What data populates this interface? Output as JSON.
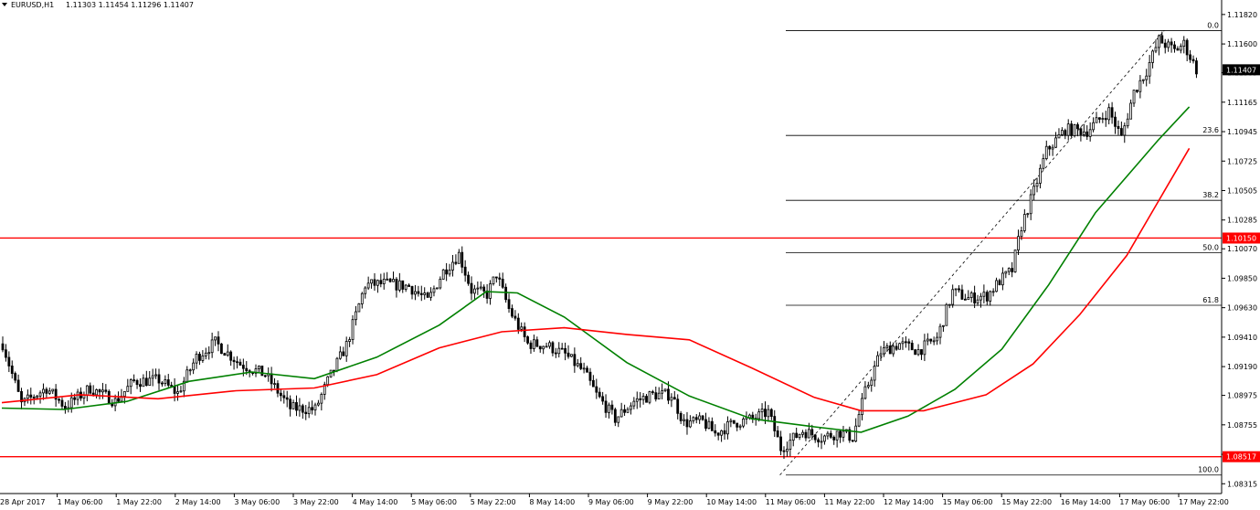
{
  "header": {
    "symbol": "EURUSD,H1",
    "ohlc": "1.11303 1.11454 1.11296 1.11407"
  },
  "chart_data": {
    "type": "candlestick",
    "grid": false,
    "ylim": [
      1.0831,
      1.1186
    ],
    "y_ticks": [
      1.1182,
      1.116,
      1.11385,
      1.11165,
      1.10945,
      1.10725,
      1.10505,
      1.10285,
      1.1007,
      1.0985,
      1.0963,
      1.0941,
      1.0919,
      1.08975,
      1.08755,
      1.08535,
      1.08315
    ],
    "x_ticks": [
      "28 Apr 2017",
      "1 May 06:00",
      "1 May 22:00",
      "2 May 14:00",
      "3 May 06:00",
      "3 May 22:00",
      "4 May 14:00",
      "5 May 06:00",
      "5 May 22:00",
      "8 May 14:00",
      "9 May 06:00",
      "9 May 22:00",
      "10 May 14:00",
      "11 May 06:00",
      "11 May 22:00",
      "12 May 14:00",
      "15 May 06:00",
      "15 May 22:00",
      "16 May 14:00",
      "17 May 06:00",
      "17 May 22:00"
    ],
    "price_labels": [
      {
        "value": "1.11407",
        "price": 1.11407,
        "style": "current"
      },
      {
        "value": "1.10150",
        "price": 1.1015,
        "style": "red"
      },
      {
        "value": "1.08517",
        "price": 1.08517,
        "style": "red"
      }
    ],
    "horizontal_lines": [
      {
        "price": 1.1015,
        "color": "#ff0000"
      },
      {
        "price": 1.08517,
        "color": "#ff0000"
      }
    ],
    "fibonacci": {
      "high": 1.117,
      "low": 1.0838,
      "levels": [
        {
          "label": "0.0",
          "ratio": 0.0
        },
        {
          "label": "23.6",
          "ratio": 0.236
        },
        {
          "label": "38.2",
          "ratio": 0.382
        },
        {
          "label": "50.0",
          "ratio": 0.5
        },
        {
          "label": "61.8",
          "ratio": 0.618
        },
        {
          "label": "100.0",
          "ratio": 1.0
        }
      ],
      "start_bar": 249,
      "end_bar": 372,
      "color": "#000000"
    },
    "moving_averages": [
      {
        "color": "#008000",
        "points": [
          [
            0,
            1.0888
          ],
          [
            20,
            1.0887
          ],
          [
            40,
            1.0893
          ],
          [
            60,
            1.0908
          ],
          [
            80,
            1.0915
          ],
          [
            100,
            1.091
          ],
          [
            120,
            1.0926
          ],
          [
            140,
            1.095
          ],
          [
            155,
            1.0975
          ],
          [
            165,
            1.0974
          ],
          [
            180,
            1.0956
          ],
          [
            200,
            1.0922
          ],
          [
            220,
            1.0897
          ],
          [
            240,
            1.088
          ],
          [
            260,
            1.0874
          ],
          [
            275,
            1.087
          ],
          [
            290,
            1.0882
          ],
          [
            305,
            1.0902
          ],
          [
            320,
            1.0932
          ],
          [
            335,
            1.098
          ],
          [
            350,
            1.1034
          ],
          [
            370,
            1.1088
          ],
          [
            380,
            1.1113
          ]
        ]
      },
      {
        "color": "#ff0000",
        "points": [
          [
            0,
            1.0892
          ],
          [
            25,
            1.0898
          ],
          [
            50,
            1.0895
          ],
          [
            75,
            1.0901
          ],
          [
            100,
            1.0903
          ],
          [
            120,
            1.0913
          ],
          [
            140,
            1.0933
          ],
          [
            160,
            1.0945
          ],
          [
            180,
            1.0948
          ],
          [
            200,
            1.0943
          ],
          [
            220,
            1.0939
          ],
          [
            240,
            1.0918
          ],
          [
            260,
            1.0896
          ],
          [
            275,
            1.0886
          ],
          [
            295,
            1.0886
          ],
          [
            315,
            1.0898
          ],
          [
            330,
            1.0921
          ],
          [
            345,
            1.0958
          ],
          [
            360,
            1.1002
          ],
          [
            372,
            1.105
          ],
          [
            380,
            1.1082
          ]
        ]
      }
    ],
    "anchors": [
      [
        0,
        1.0936
      ],
      [
        6,
        1.0891
      ],
      [
        14,
        1.0903
      ],
      [
        20,
        1.0889
      ],
      [
        28,
        1.0903
      ],
      [
        36,
        1.0893
      ],
      [
        42,
        1.0908
      ],
      [
        50,
        1.0909
      ],
      [
        56,
        1.0899
      ],
      [
        62,
        1.0926
      ],
      [
        68,
        1.0937
      ],
      [
        76,
        1.0921
      ],
      [
        84,
        1.0913
      ],
      [
        92,
        1.0888
      ],
      [
        100,
        1.0887
      ],
      [
        104,
        1.0908
      ],
      [
        110,
        1.0935
      ],
      [
        116,
        1.098
      ],
      [
        122,
        1.0981
      ],
      [
        130,
        1.0979
      ],
      [
        136,
        1.0968
      ],
      [
        141,
        1.099
      ],
      [
        146,
        1.1003
      ],
      [
        150,
        1.0976
      ],
      [
        155,
        1.0973
      ],
      [
        158,
        1.0988
      ],
      [
        162,
        1.0962
      ],
      [
        168,
        1.0936
      ],
      [
        174,
        1.0935
      ],
      [
        180,
        1.0928
      ],
      [
        186,
        1.0915
      ],
      [
        190,
        1.0898
      ],
      [
        196,
        1.088
      ],
      [
        202,
        1.0893
      ],
      [
        208,
        1.0898
      ],
      [
        214,
        1.0898
      ],
      [
        218,
        1.0877
      ],
      [
        224,
        1.0878
      ],
      [
        228,
        1.0869
      ],
      [
        234,
        1.0877
      ],
      [
        240,
        1.088
      ],
      [
        245,
        1.0885
      ],
      [
        249,
        1.0858
      ],
      [
        256,
        1.0871
      ],
      [
        262,
        1.0866
      ],
      [
        268,
        1.087
      ],
      [
        272,
        1.0866
      ],
      [
        276,
        1.09
      ],
      [
        281,
        1.093
      ],
      [
        287,
        1.0936
      ],
      [
        293,
        1.0931
      ],
      [
        299,
        1.094
      ],
      [
        304,
        1.0975
      ],
      [
        309,
        1.097
      ],
      [
        315,
        1.0972
      ],
      [
        319,
        1.0983
      ],
      [
        323,
        1.0991
      ],
      [
        326,
        1.1024
      ],
      [
        330,
        1.105
      ],
      [
        334,
        1.108
      ],
      [
        340,
        1.1096
      ],
      [
        347,
        1.1095
      ],
      [
        354,
        1.111
      ],
      [
        358,
        1.109
      ],
      [
        362,
        1.1124
      ],
      [
        366,
        1.114
      ],
      [
        370,
        1.1163
      ],
      [
        375,
        1.1155
      ],
      [
        378,
        1.116
      ],
      [
        382,
        1.1141
      ]
    ]
  }
}
